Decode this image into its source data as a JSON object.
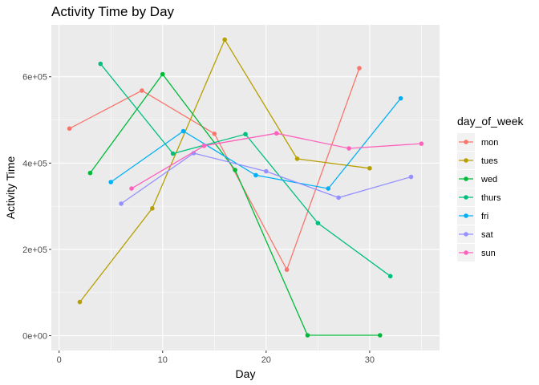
{
  "chart_data": {
    "type": "line",
    "title": "Activity Time by Day",
    "xlabel": "Day",
    "ylabel": "Activity Time",
    "xlim": [
      -0.75,
      36.75
    ],
    "ylim": [
      -34300,
      720300
    ],
    "x_ticks": [
      0,
      10,
      20,
      30
    ],
    "x_tick_labels": [
      "0",
      "10",
      "20",
      "30"
    ],
    "y_ticks": [
      0,
      200000,
      400000,
      600000
    ],
    "y_tick_labels": [
      "0e+00",
      "2e+05",
      "4e+05",
      "6e+05"
    ],
    "grid": true,
    "legend": {
      "title": "day_of_week",
      "position": "right"
    },
    "series": [
      {
        "name": "mon",
        "color": "#F8766D",
        "x": [
          1,
          8,
          15,
          22,
          29
        ],
        "y": [
          480000,
          568000,
          468000,
          153000,
          620000
        ]
      },
      {
        "name": "tues",
        "color": "#B79F00",
        "x": [
          2,
          9,
          16,
          23,
          30
        ],
        "y": [
          78000,
          295000,
          686000,
          410000,
          388000
        ]
      },
      {
        "name": "wed",
        "color": "#00BA38",
        "x": [
          3,
          10,
          17,
          24,
          31
        ],
        "y": [
          377000,
          606000,
          384000,
          1000,
          1000
        ]
      },
      {
        "name": "thurs",
        "color": "#00BF7D",
        "x": [
          4,
          11,
          18,
          25,
          32
        ],
        "y": [
          630000,
          422000,
          467000,
          261000,
          138000
        ]
      },
      {
        "name": "fri",
        "color": "#00B0F6",
        "x": [
          5,
          12,
          19,
          26,
          33
        ],
        "y": [
          356000,
          474000,
          372000,
          341000,
          550000
        ]
      },
      {
        "name": "sat",
        "color": "#9590FF",
        "x": [
          6,
          13,
          20,
          27,
          34
        ],
        "y": [
          306000,
          423000,
          381000,
          320000,
          368000
        ]
      },
      {
        "name": "sun",
        "color": "#FF62BC",
        "x": [
          7,
          14,
          21,
          28,
          35
        ],
        "y": [
          341000,
          440000,
          469000,
          434000,
          445000
        ]
      }
    ]
  }
}
